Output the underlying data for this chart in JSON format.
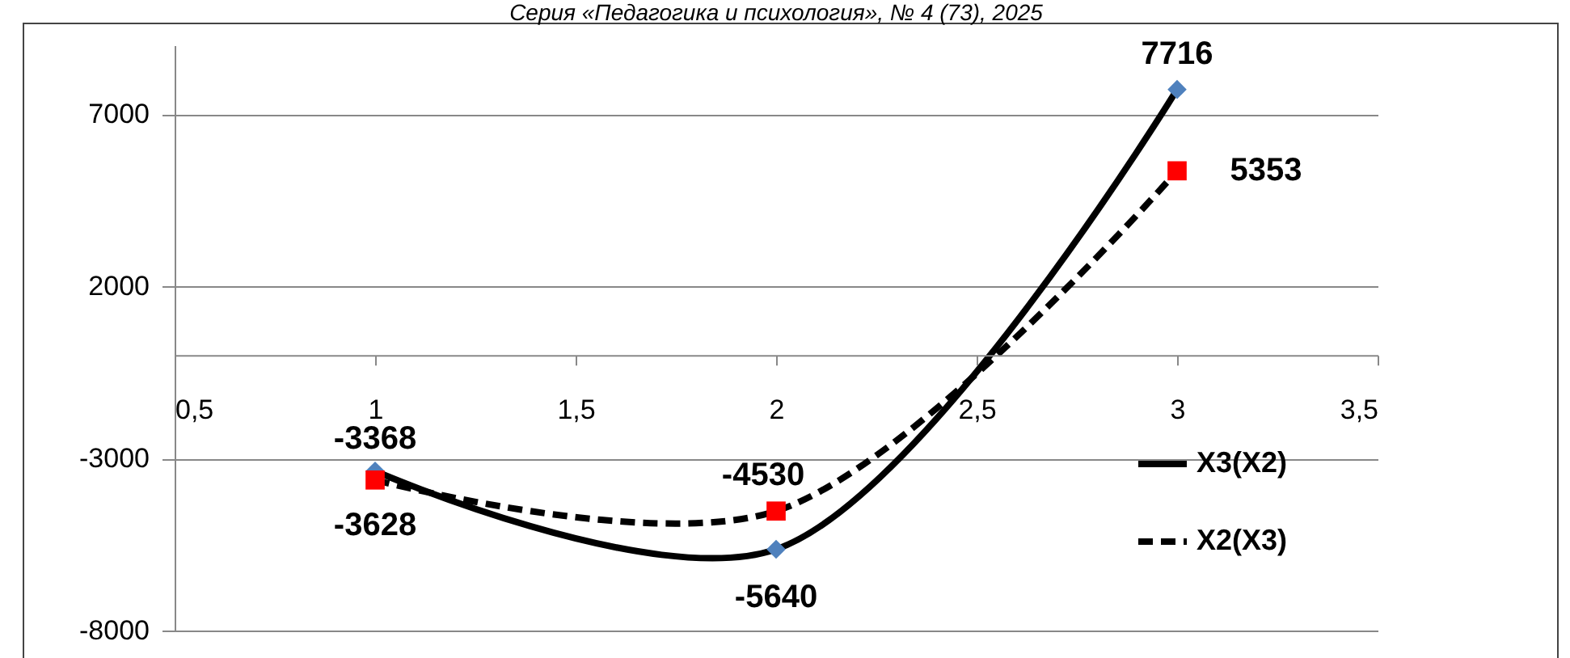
{
  "chart_data": {
    "type": "line",
    "annotations": [
      "Серия «Педагогика и психология», № 4 (73), 2025"
    ],
    "x": [
      1,
      2,
      3
    ],
    "series": [
      {
        "name": "X3(X2)",
        "color": "#000000",
        "colors": [
          "#4f81bd",
          "#4f81bd",
          "#4f81bd"
        ],
        "marker": "diamond",
        "line_style": "solid",
        "values": [
          -3368,
          -5640,
          7716
        ]
      },
      {
        "name": "X2(X3)",
        "color": "#000000",
        "colors": [
          "#ff0000",
          "#ff0000",
          "#ff0000"
        ],
        "marker": "square",
        "line_style": "dashed",
        "values": [
          -3628,
          -4530,
          5353
        ]
      }
    ],
    "xlim": [
      0.5,
      3.5
    ],
    "xticks": [
      {
        "value": 0.5,
        "label": "0,5"
      },
      1,
      {
        "value": 1.5,
        "label": "1,5"
      },
      2,
      {
        "value": 2.5,
        "label": "2,5"
      },
      3,
      {
        "value": 3.5,
        "label": "3,5"
      }
    ],
    "ylim": [
      -8000,
      9000
    ],
    "yticks": [
      -8000,
      -3000,
      2000,
      7000
    ],
    "grid": "y",
    "legend": "bottom right",
    "data_labels": true
  }
}
